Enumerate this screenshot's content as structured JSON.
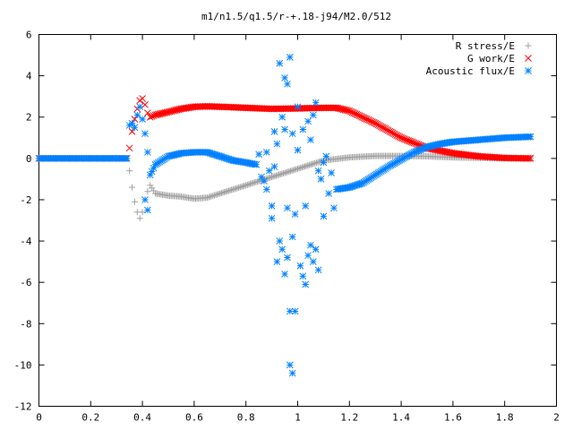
{
  "chart_data": {
    "type": "scatter",
    "title": "m1/n1.5/q1.5/r-+.18-j94/M2.0/512",
    "xlabel": "",
    "ylabel": "",
    "xlim": [
      0,
      2
    ],
    "ylim": [
      -12,
      6
    ],
    "xticks": [
      "0",
      "0.2",
      "0.4",
      "0.6",
      "0.8",
      "1",
      "1.2",
      "1.4",
      "1.6",
      "1.8",
      "2"
    ],
    "yticks": [
      "6",
      "4",
      "2",
      "0",
      "-2",
      "-4",
      "-6",
      "-8",
      "-10",
      "-12"
    ],
    "grid": false,
    "legend_position": "top-right",
    "series": [
      {
        "name": "R stress/E",
        "marker": "+",
        "color": "#a0a0a0",
        "points": [
          [
            0,
            0
          ],
          [
            0.1,
            0
          ],
          [
            0.2,
            0
          ],
          [
            0.3,
            0
          ],
          [
            0.34,
            0
          ],
          [
            0.35,
            -0.6
          ],
          [
            0.36,
            -1.4
          ],
          [
            0.37,
            -2.1
          ],
          [
            0.38,
            -2.6
          ],
          [
            0.39,
            -2.9
          ],
          [
            0.4,
            -2.6
          ],
          [
            0.41,
            -2.0
          ],
          [
            0.42,
            -1.6
          ],
          [
            0.43,
            -1.3
          ],
          [
            0.45,
            -1.7
          ],
          [
            0.5,
            -1.8
          ],
          [
            0.55,
            -1.85
          ],
          [
            0.6,
            -1.95
          ],
          [
            0.65,
            -1.9
          ],
          [
            0.7,
            -1.7
          ],
          [
            0.8,
            -1.3
          ],
          [
            0.9,
            -0.9
          ],
          [
            1.0,
            -0.5
          ],
          [
            1.05,
            -0.3
          ],
          [
            1.1,
            -0.1
          ],
          [
            1.2,
            0.05
          ],
          [
            1.3,
            0.12
          ],
          [
            1.4,
            0.12
          ],
          [
            1.5,
            0.1
          ],
          [
            1.6,
            0.05
          ],
          [
            1.7,
            0.02
          ],
          [
            1.8,
            0.01
          ],
          [
            1.9,
            0
          ]
        ]
      },
      {
        "name": "G work/E",
        "marker": "x",
        "color": "#ff0000",
        "points": [
          [
            0,
            0
          ],
          [
            0.1,
            0
          ],
          [
            0.2,
            0
          ],
          [
            0.3,
            0
          ],
          [
            0.34,
            0
          ],
          [
            0.35,
            0.5
          ],
          [
            0.36,
            1.3
          ],
          [
            0.37,
            1.9
          ],
          [
            0.38,
            2.4
          ],
          [
            0.39,
            2.8
          ],
          [
            0.4,
            2.9
          ],
          [
            0.41,
            2.6
          ],
          [
            0.42,
            2.2
          ],
          [
            0.43,
            2.0
          ],
          [
            0.45,
            2.1
          ],
          [
            0.5,
            2.25
          ],
          [
            0.55,
            2.4
          ],
          [
            0.6,
            2.5
          ],
          [
            0.65,
            2.52
          ],
          [
            0.7,
            2.5
          ],
          [
            0.8,
            2.45
          ],
          [
            0.9,
            2.4
          ],
          [
            1.0,
            2.42
          ],
          [
            1.1,
            2.45
          ],
          [
            1.15,
            2.45
          ],
          [
            1.2,
            2.3
          ],
          [
            1.25,
            2.0
          ],
          [
            1.3,
            1.7
          ],
          [
            1.35,
            1.35
          ],
          [
            1.4,
            1.0
          ],
          [
            1.45,
            0.75
          ],
          [
            1.5,
            0.5
          ],
          [
            1.6,
            0.25
          ],
          [
            1.7,
            0.1
          ],
          [
            1.8,
            0.02
          ],
          [
            1.9,
            0
          ]
        ]
      },
      {
        "name": "Acoustic flux/E",
        "marker": "*",
        "color": "#0080ff",
        "points": [
          [
            0,
            0
          ],
          [
            0.1,
            0
          ],
          [
            0.2,
            0
          ],
          [
            0.3,
            0
          ],
          [
            0.34,
            0
          ],
          [
            0.35,
            1.6
          ],
          [
            0.36,
            1.7
          ],
          [
            0.37,
            1.5
          ],
          [
            0.38,
            2.1
          ],
          [
            0.39,
            2.5
          ],
          [
            0.4,
            1.9
          ],
          [
            0.41,
            1.2
          ],
          [
            0.42,
            0.3
          ],
          [
            0.41,
            -2.0
          ],
          [
            0.42,
            -2.5
          ],
          [
            0.43,
            -0.8
          ],
          [
            0.45,
            -0.3
          ],
          [
            0.5,
            0.1
          ],
          [
            0.55,
            0.25
          ],
          [
            0.6,
            0.3
          ],
          [
            0.65,
            0.3
          ],
          [
            0.7,
            0.1
          ],
          [
            0.75,
            -0.1
          ],
          [
            0.8,
            -0.2
          ],
          [
            0.84,
            -0.3
          ],
          [
            0.85,
            0.2
          ],
          [
            0.86,
            -0.9
          ],
          [
            0.87,
            -1.1
          ],
          [
            0.88,
            0.3
          ],
          [
            0.88,
            -1.5
          ],
          [
            0.89,
            -0.6
          ],
          [
            0.9,
            -2.3
          ],
          [
            0.9,
            -2.9
          ],
          [
            0.91,
            -0.4
          ],
          [
            0.91,
            1.3
          ],
          [
            0.92,
            -5.0
          ],
          [
            0.92,
            0.7
          ],
          [
            0.93,
            -4.0
          ],
          [
            0.93,
            4.6
          ],
          [
            0.94,
            -4.4
          ],
          [
            0.94,
            2.0
          ],
          [
            0.95,
            -5.6
          ],
          [
            0.95,
            1.4
          ],
          [
            0.95,
            3.9
          ],
          [
            0.96,
            -4.8
          ],
          [
            0.96,
            -2.4
          ],
          [
            0.96,
            3.6
          ],
          [
            0.97,
            -7.4
          ],
          [
            0.97,
            4.9
          ],
          [
            0.97,
            -10.0
          ],
          [
            0.98,
            -10.4
          ],
          [
            0.98,
            1.2
          ],
          [
            0.98,
            -3.8
          ],
          [
            0.99,
            -7.4
          ],
          [
            0.99,
            -2.7
          ],
          [
            1.0,
            2.5
          ],
          [
            1.0,
            0.4
          ],
          [
            1.01,
            -5.2
          ],
          [
            1.02,
            1.4
          ],
          [
            1.02,
            -5.7
          ],
          [
            1.03,
            -6.1
          ],
          [
            1.03,
            -2.3
          ],
          [
            1.04,
            -4.7
          ],
          [
            1.04,
            1.8
          ],
          [
            1.05,
            -4.2
          ],
          [
            1.05,
            0.9
          ],
          [
            1.06,
            -5.0
          ],
          [
            1.06,
            2.1
          ],
          [
            1.07,
            2.7
          ],
          [
            1.07,
            -4.4
          ],
          [
            1.08,
            -0.6
          ],
          [
            1.08,
            -5.4
          ],
          [
            1.09,
            -1.0
          ],
          [
            1.1,
            -0.2
          ],
          [
            1.1,
            -2.8
          ],
          [
            1.11,
            0.1
          ],
          [
            1.12,
            -1.7
          ],
          [
            1.13,
            -0.7
          ],
          [
            1.14,
            -2.4
          ],
          [
            1.15,
            -1.5
          ],
          [
            1.2,
            -1.4
          ],
          [
            1.25,
            -1.2
          ],
          [
            1.3,
            -0.8
          ],
          [
            1.35,
            -0.4
          ],
          [
            1.4,
            -0.05
          ],
          [
            1.45,
            0.3
          ],
          [
            1.5,
            0.55
          ],
          [
            1.55,
            0.7
          ],
          [
            1.6,
            0.8
          ],
          [
            1.7,
            0.9
          ],
          [
            1.8,
            1.0
          ],
          [
            1.9,
            1.05
          ]
        ]
      }
    ]
  }
}
